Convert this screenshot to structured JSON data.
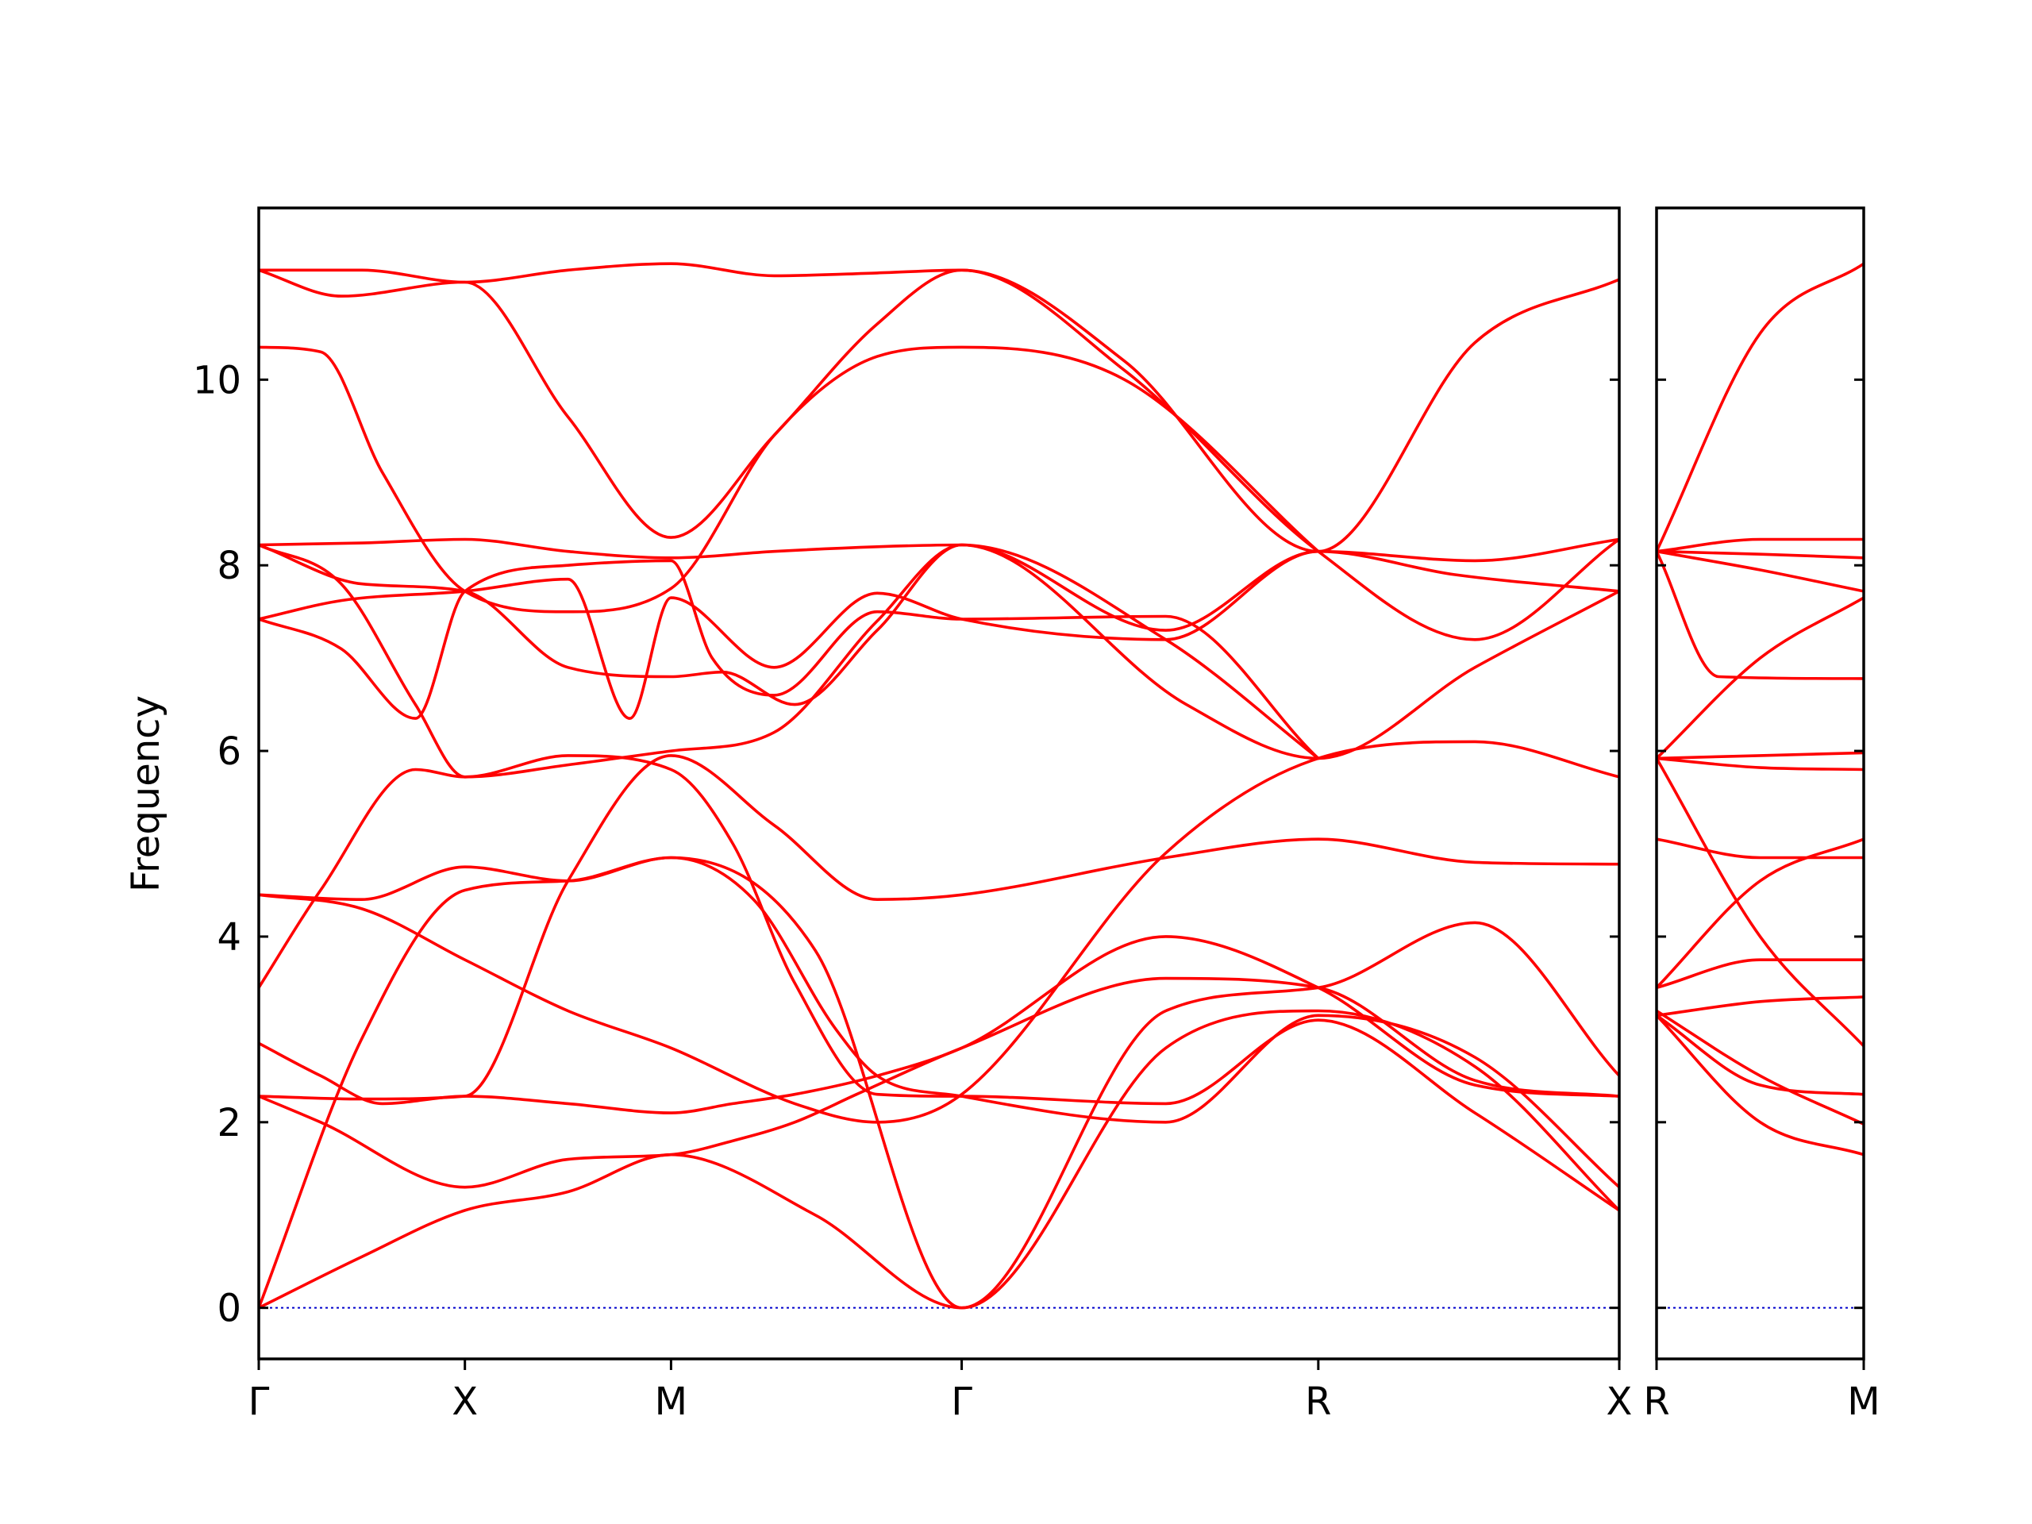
{
  "chart_data": {
    "type": "line",
    "ylabel": "Frequency",
    "xlabel": "",
    "ylim": [
      -0.55,
      11.85
    ],
    "yticks": [
      0,
      2,
      4,
      6,
      8,
      10
    ],
    "line_color": "#ff0000",
    "zero_line_color": "#0000cc",
    "grid": false,
    "panels": [
      {
        "x_range": [
          0,
          6.6
        ],
        "high_symmetry_points": [
          {
            "x": 0,
            "label": "Γ"
          },
          {
            "x": 1,
            "label": "X"
          },
          {
            "x": 2,
            "label": "M"
          },
          {
            "x": 3.41,
            "label": "Γ"
          },
          {
            "x": 5.14,
            "label": "R"
          },
          {
            "x": 6.6,
            "label": "X"
          }
        ],
        "bands": [
          {
            "x": [
              0,
              0.5,
              1,
              1.5,
              2,
              2.5,
              3,
              3.41,
              4.2,
              5.14,
              5.9,
              6.6
            ],
            "y": [
              11.18,
              11.18,
              11.05,
              11.18,
              11.25,
              11.12,
              11.15,
              11.18,
              10.2,
              8.15,
              10.4,
              11.08
            ]
          },
          {
            "x": [
              0,
              0.4,
              1,
              1.5,
              2,
              2.5,
              3,
              3.41,
              4.2,
              5.14,
              5.9,
              6.6
            ],
            "y": [
              11.18,
              10.9,
              11.05,
              9.6,
              8.3,
              9.4,
              10.6,
              11.18,
              10.1,
              8.15,
              7.2,
              8.28
            ]
          },
          {
            "x": [
              0,
              0.3,
              0.6,
              1,
              1.5,
              2,
              2.5,
              3,
              3.41,
              4.2,
              5.14
            ],
            "y": [
              10.35,
              10.3,
              9.0,
              7.72,
              7.5,
              7.75,
              9.4,
              10.25,
              10.35,
              10.0,
              8.15
            ]
          },
          {
            "x": [
              0,
              0.5,
              1,
              1.5,
              2,
              2.5,
              3,
              3.41,
              4.4,
              5.14,
              5.9,
              6.6
            ],
            "y": [
              8.22,
              8.24,
              8.28,
              8.15,
              8.08,
              8.15,
              8.2,
              8.22,
              7.3,
              8.15,
              8.05,
              8.28
            ]
          },
          {
            "x": [
              0,
              0.4,
              0.76,
              1,
              1.5,
              2,
              2.5,
              3,
              3.41,
              4.5,
              5.14,
              5.9,
              6.6
            ],
            "y": [
              8.22,
              7.8,
              6.5,
              5.72,
              5.85,
              6.0,
              6.2,
              7.4,
              8.22,
              6.5,
              5.92,
              6.9,
              7.72
            ]
          },
          {
            "x": [
              0,
              0.4,
              1,
              1.5,
              1.8,
              2,
              2.5,
              3,
              3.41,
              4.4,
              5.14,
              5.8,
              6.6
            ],
            "y": [
              7.42,
              7.62,
              7.72,
              7.85,
              6.35,
              7.65,
              6.9,
              7.7,
              7.42,
              7.2,
              8.15,
              7.9,
              7.72
            ]
          },
          {
            "x": [
              0,
              0.4,
              0.76,
              1,
              1.5,
              2,
              2.2,
              2.5,
              3,
              3.41,
              4.4,
              5.14
            ],
            "y": [
              7.42,
              7.1,
              6.35,
              7.72,
              8.0,
              8.05,
              7.0,
              6.6,
              7.5,
              7.42,
              7.45,
              5.92
            ]
          },
          {
            "x": [
              0,
              0.5,
              1,
              1.5,
              2,
              2.25,
              2.6,
              3,
              3.41,
              4.4,
              5.14
            ],
            "y": [
              8.22,
              7.8,
              7.72,
              6.9,
              6.8,
              6.85,
              6.5,
              7.3,
              8.22,
              7.2,
              5.92
            ]
          },
          {
            "x": [
              0,
              0.5,
              1,
              1.5,
              2,
              2.5,
              3,
              3.41,
              4.4,
              5.14,
              5.9,
              6.6
            ],
            "y": [
              2.28,
              2.25,
              2.28,
              4.6,
              5.95,
              5.2,
              4.4,
              4.45,
              4.85,
              5.05,
              4.8,
              4.78
            ]
          },
          {
            "x": [
              0,
              0.3,
              0.6,
              1,
              1.5,
              2,
              2.3,
              2.6,
              3,
              3.41,
              4.4,
              5.14,
              5.9,
              6.6
            ],
            "y": [
              2.85,
              2.5,
              2.2,
              2.28,
              2.2,
              2.1,
              2.2,
              2.3,
              2.5,
              2.8,
              4.0,
              3.45,
              2.4,
              2.28
            ]
          },
          {
            "x": [
              0,
              0.3,
              0.76,
              1,
              1.5,
              2,
              2.3,
              2.6,
              3,
              3.41,
              4.4,
              5.14,
              5.9,
              6.6
            ],
            "y": [
              3.45,
              4.5,
              5.8,
              5.72,
              5.95,
              5.8,
              5.0,
              3.5,
              2.3,
              2.28,
              2.2,
              3.1,
              2.1,
              1.05
            ]
          },
          {
            "x": [
              0,
              0.5,
              1,
              1.5,
              2,
              2.6,
              3,
              3.41,
              4.4,
              5.14,
              5.9,
              6.6
            ],
            "y": [
              4.45,
              4.3,
              3.75,
              3.2,
              2.8,
              2.2,
              2.0,
              2.3,
              4.9,
              5.92,
              6.1,
              5.72
            ]
          },
          {
            "x": [
              0,
              0.5,
              1,
              1.5,
              2,
              2.4,
              2.8,
              3,
              3.41,
              4.4,
              5.14,
              5.9,
              6.6
            ],
            "y": [
              4.45,
              4.4,
              4.75,
              4.6,
              4.85,
              4.4,
              3.0,
              2.5,
              2.28,
              2.0,
              3.15,
              2.7,
              1.3
            ]
          },
          {
            "x": [
              0,
              0.3,
              1,
              1.5,
              2,
              2.3,
              2.6,
              2.9,
              3.41,
              4.4,
              5.14,
              5.9,
              6.6
            ],
            "y": [
              2.28,
              2.0,
              1.3,
              1.6,
              1.65,
              1.8,
              2.0,
              2.3,
              2.8,
              3.55,
              3.45,
              2.45,
              2.28
            ]
          },
          {
            "x": [
              0,
              0.5,
              1,
              1.5,
              2,
              2.7,
              3.41,
              4.4,
              5.14,
              5.9,
              6.6
            ],
            "y": [
              0,
              0.55,
              1.05,
              1.25,
              1.65,
              1.0,
              0,
              2.8,
              3.2,
              2.6,
              1.05
            ]
          },
          {
            "x": [
              0,
              0.5,
              1,
              1.5,
              2,
              2.7,
              3.41,
              4.4,
              5.14,
              5.9,
              6.6
            ],
            "y": [
              0,
              2.9,
              4.5,
              4.6,
              4.85,
              3.85,
              0,
              3.2,
              3.45,
              4.15,
              2.5
            ]
          }
        ]
      },
      {
        "x_range": [
          0,
          1
        ],
        "high_symmetry_points": [
          {
            "x": 0,
            "label": "R"
          },
          {
            "x": 1,
            "label": "M"
          }
        ],
        "bands": [
          {
            "x": [
              0,
              0.5,
              1
            ],
            "y": [
              8.15,
              10.5,
              11.25
            ]
          },
          {
            "x": [
              0,
              0.5,
              1
            ],
            "y": [
              8.15,
              8.28,
              8.28
            ]
          },
          {
            "x": [
              0,
              0.5,
              1
            ],
            "y": [
              8.15,
              8.12,
              8.08
            ]
          },
          {
            "x": [
              0,
              0.5,
              1
            ],
            "y": [
              8.15,
              7.95,
              7.72
            ]
          },
          {
            "x": [
              0,
              0.5,
              1
            ],
            "y": [
              5.92,
              7.0,
              7.65
            ]
          },
          {
            "x": [
              0,
              0.3,
              1
            ],
            "y": [
              8.15,
              6.8,
              6.78
            ]
          },
          {
            "x": [
              0,
              0.5,
              1
            ],
            "y": [
              5.92,
              5.95,
              5.98
            ]
          },
          {
            "x": [
              0,
              0.5,
              1
            ],
            "y": [
              5.92,
              5.82,
              5.8
            ]
          },
          {
            "x": [
              0,
              0.5,
              1
            ],
            "y": [
              5.05,
              4.85,
              4.85
            ]
          },
          {
            "x": [
              0,
              0.5,
              1
            ],
            "y": [
              3.45,
              4.6,
              5.05
            ]
          },
          {
            "x": [
              0,
              0.5,
              1
            ],
            "y": [
              5.92,
              4.0,
              2.82
            ]
          },
          {
            "x": [
              0,
              0.5,
              1
            ],
            "y": [
              3.45,
              3.75,
              3.75
            ]
          },
          {
            "x": [
              0,
              0.5,
              1
            ],
            "y": [
              3.15,
              3.3,
              3.35
            ]
          },
          {
            "x": [
              0,
              0.5,
              1
            ],
            "y": [
              3.15,
              2.4,
              2.3
            ]
          },
          {
            "x": [
              0,
              0.5,
              1
            ],
            "y": [
              3.2,
              2.5,
              1.98
            ]
          },
          {
            "x": [
              0,
              0.5,
              1
            ],
            "y": [
              3.15,
              2.0,
              1.65
            ]
          }
        ]
      }
    ]
  }
}
